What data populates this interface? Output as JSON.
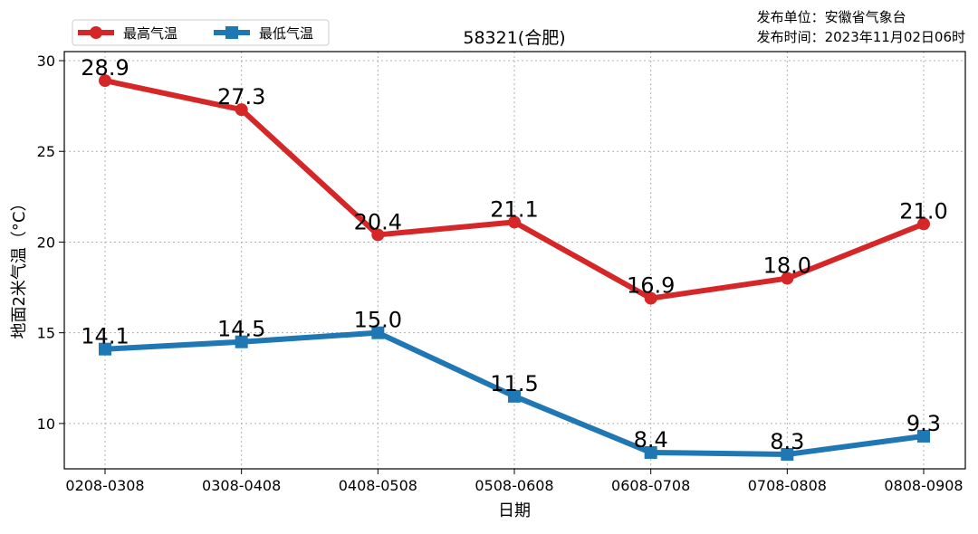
{
  "header": {
    "issuer": "发布单位：安徽省气象台",
    "issue_time": "发布时间：2023年11月02日06时"
  },
  "chart_data": {
    "type": "line",
    "title": "58321(合肥)",
    "xlabel": "日期",
    "ylabel": "地面2米气温（°C）",
    "categories": [
      "0208-0308",
      "0308-0408",
      "0408-0508",
      "0508-0608",
      "0608-0708",
      "0708-0808",
      "0808-0908"
    ],
    "ylim": [
      7.5,
      30.5
    ],
    "yticks": [
      10,
      15,
      20,
      25,
      30
    ],
    "grid": true,
    "legend_position": "top-left",
    "series": [
      {
        "name": "最高气温",
        "values": [
          28.9,
          27.3,
          20.4,
          21.1,
          16.9,
          18.0,
          21.0
        ],
        "labels": [
          "28.9",
          "27.3",
          "20.4",
          "21.1",
          "16.9",
          "18.0",
          "21.0"
        ],
        "color": "#d62728",
        "marker": "circle"
      },
      {
        "name": "最低气温",
        "values": [
          14.1,
          14.5,
          15.0,
          11.5,
          8.4,
          8.3,
          9.3
        ],
        "labels": [
          "14.1",
          "14.5",
          "15.0",
          "11.5",
          "8.4",
          "8.3",
          "9.3"
        ],
        "color": "#1f77b4",
        "marker": "square"
      }
    ]
  }
}
